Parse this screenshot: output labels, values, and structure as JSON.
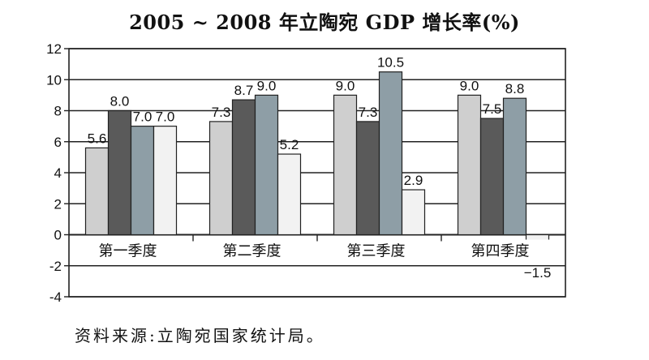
{
  "chart_data": {
    "type": "bar",
    "title": "2005 ~ 2008 年立陶宛 GDP 增长率(%)",
    "categories": [
      "第一季度",
      "第二季度",
      "第三季度",
      "第四季度"
    ],
    "series": [
      {
        "values": [
          5.6,
          7.3,
          9.0,
          9.0
        ],
        "color": "#cfcfcf"
      },
      {
        "values": [
          8.0,
          8.7,
          7.3,
          7.5
        ],
        "color": "#5a5a5a"
      },
      {
        "values": [
          7.0,
          9.0,
          10.5,
          8.8
        ],
        "color": "#8e9ea6"
      },
      {
        "values": [
          7.0,
          5.2,
          2.9,
          -1.5
        ],
        "color": "#f2f2f2"
      }
    ],
    "ylim": [
      -4,
      12
    ],
    "yticks": [
      -4,
      -2,
      0,
      2,
      4,
      6,
      8,
      10,
      12
    ],
    "grid": true
  },
  "source": "资料来源:立陶宛国家统计局。"
}
